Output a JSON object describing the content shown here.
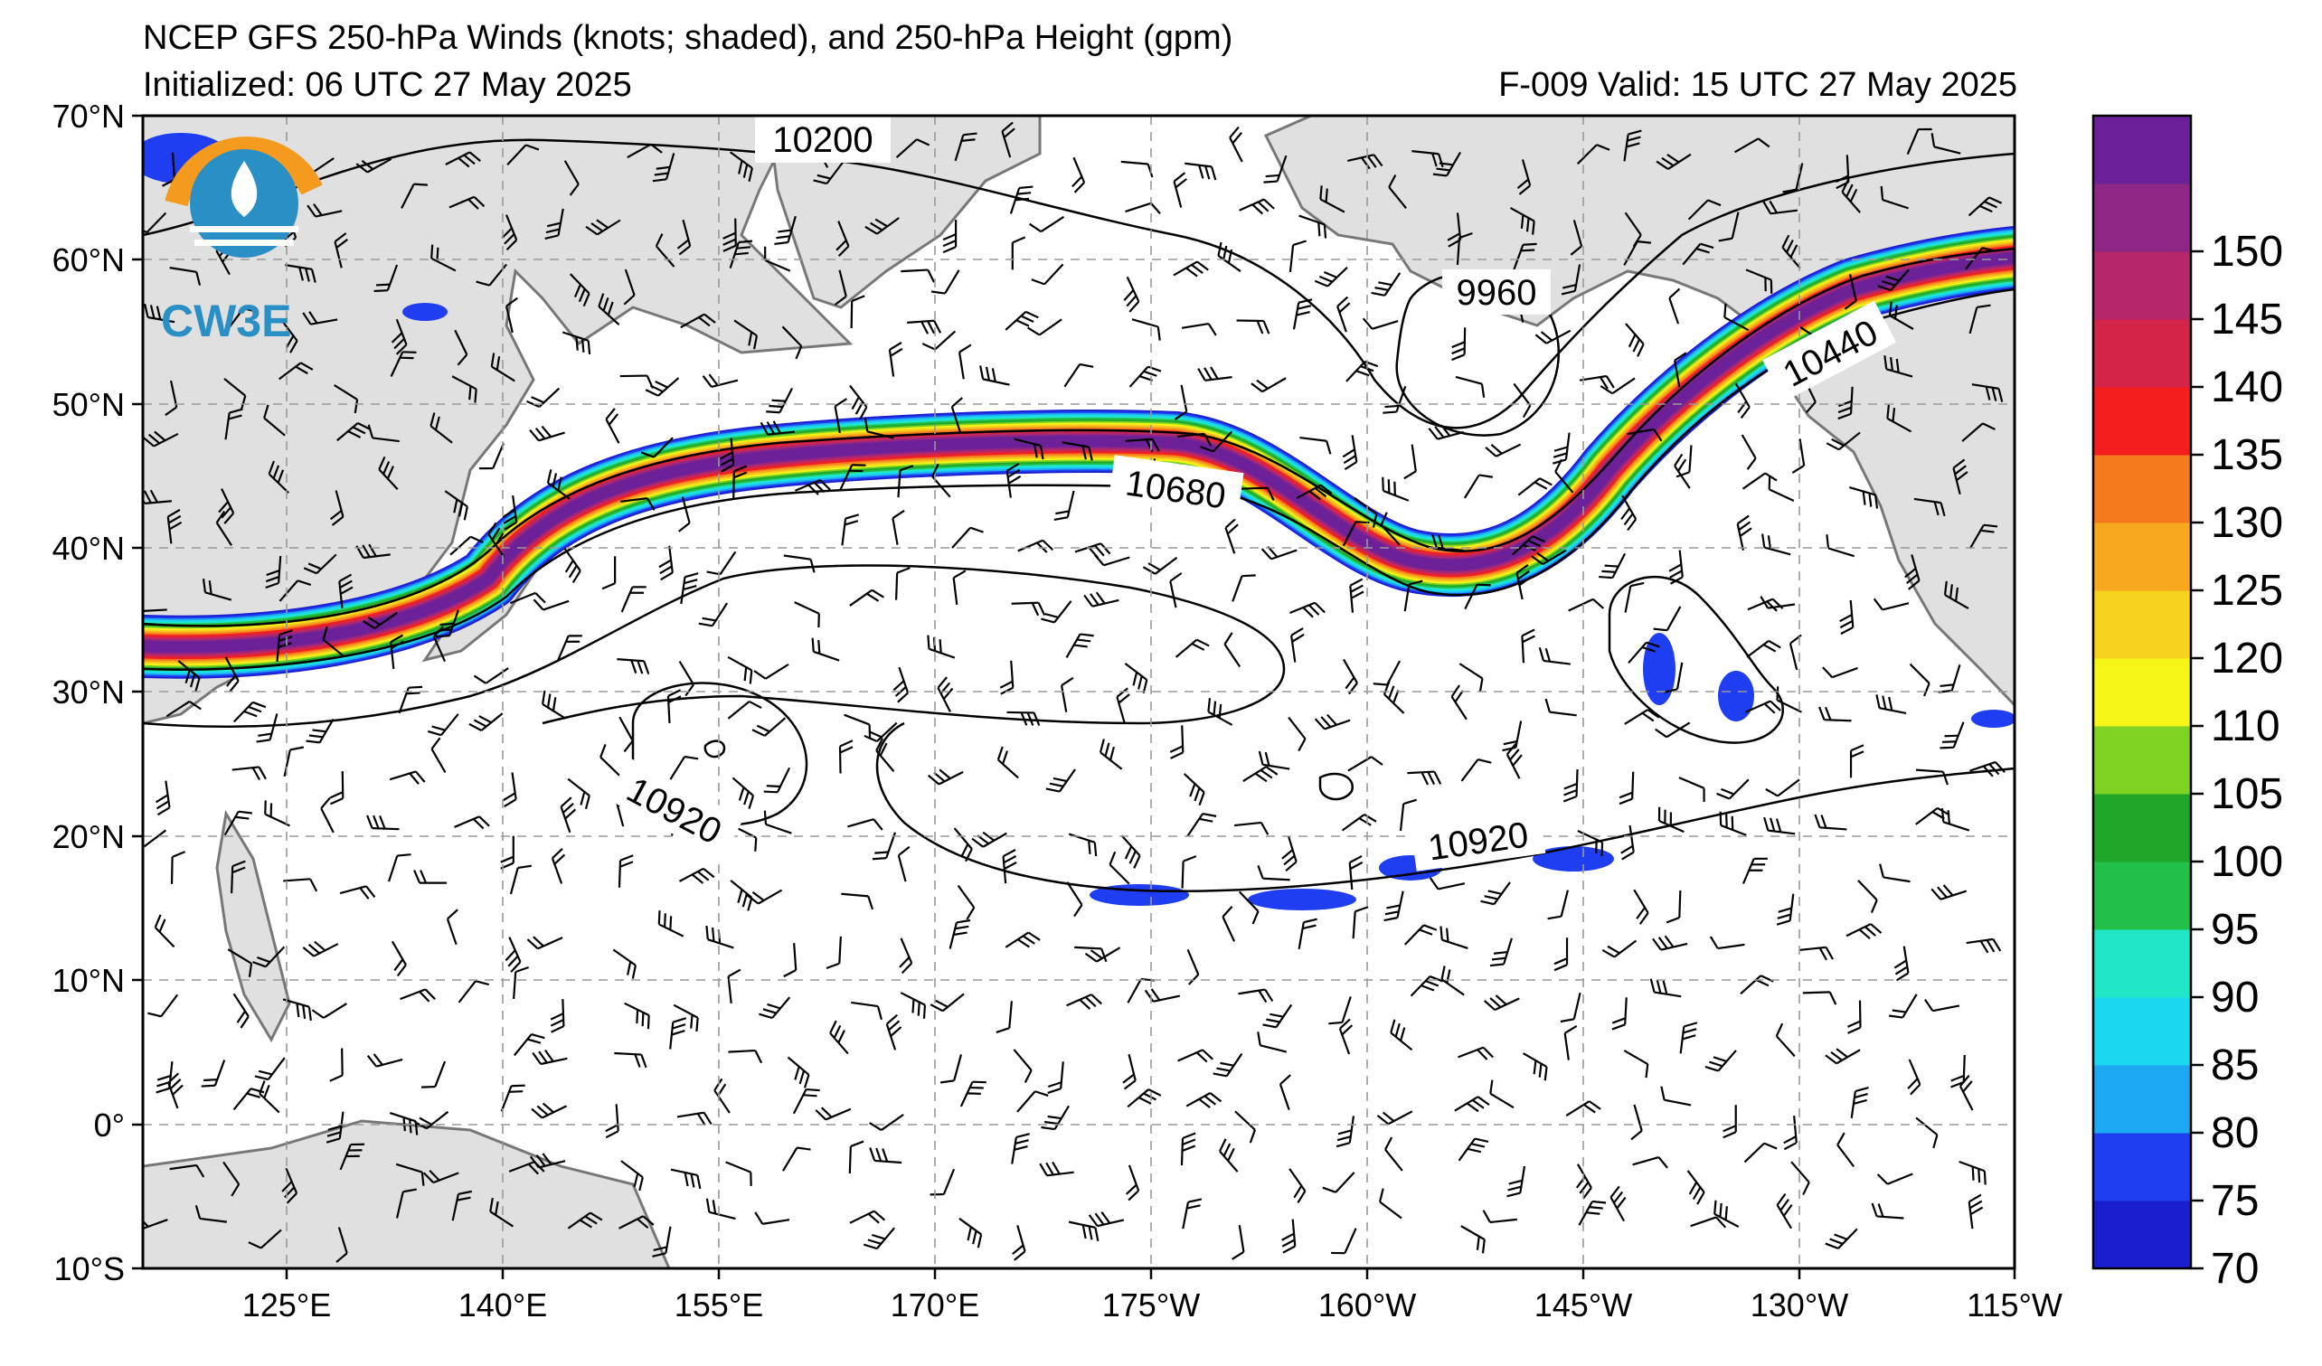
{
  "header": {
    "title": "NCEP GFS 250-hPa Winds (knots; shaded), and 250-hPa Height (gpm)",
    "initialized": "Initialized: 06 UTC 27 May 2025",
    "valid": "F-009  Valid: 15 UTC 27 May 2025"
  },
  "map": {
    "lat_labels": [
      "70°N",
      "60°N",
      "50°N",
      "40°N",
      "30°N",
      "20°N",
      "10°N",
      "0°",
      "10°S"
    ],
    "lon_labels": [
      "125°E",
      "140°E",
      "155°E",
      "170°E",
      "175°W",
      "160°W",
      "145°W",
      "130°W",
      "115°W"
    ],
    "contour_labels": [
      "10200",
      "9960",
      "10440",
      "10680",
      "10920",
      "10920"
    ],
    "land_color": "#e0e0e0",
    "coast_color": "#777777",
    "grid_color": "#999999"
  },
  "colorbar": {
    "labels": [
      "70",
      "75",
      "80",
      "85",
      "90",
      "95",
      "100",
      "105",
      "110",
      "120",
      "125",
      "130",
      "135",
      "140",
      "145",
      "150"
    ],
    "colors": [
      "#1a1ed1",
      "#1f3ef2",
      "#1fa8f2",
      "#19d9f0",
      "#1fe8c6",
      "#22c04a",
      "#1fa72a",
      "#7ed322",
      "#f5f517",
      "#f7d21d",
      "#f7a81d",
      "#f57a1e",
      "#f51d1d",
      "#d42549",
      "#b5266a",
      "#8f2585",
      "#6d2198"
    ]
  },
  "logo": {
    "text": "CW3E",
    "icon": "cw3e-drop-logo"
  }
}
